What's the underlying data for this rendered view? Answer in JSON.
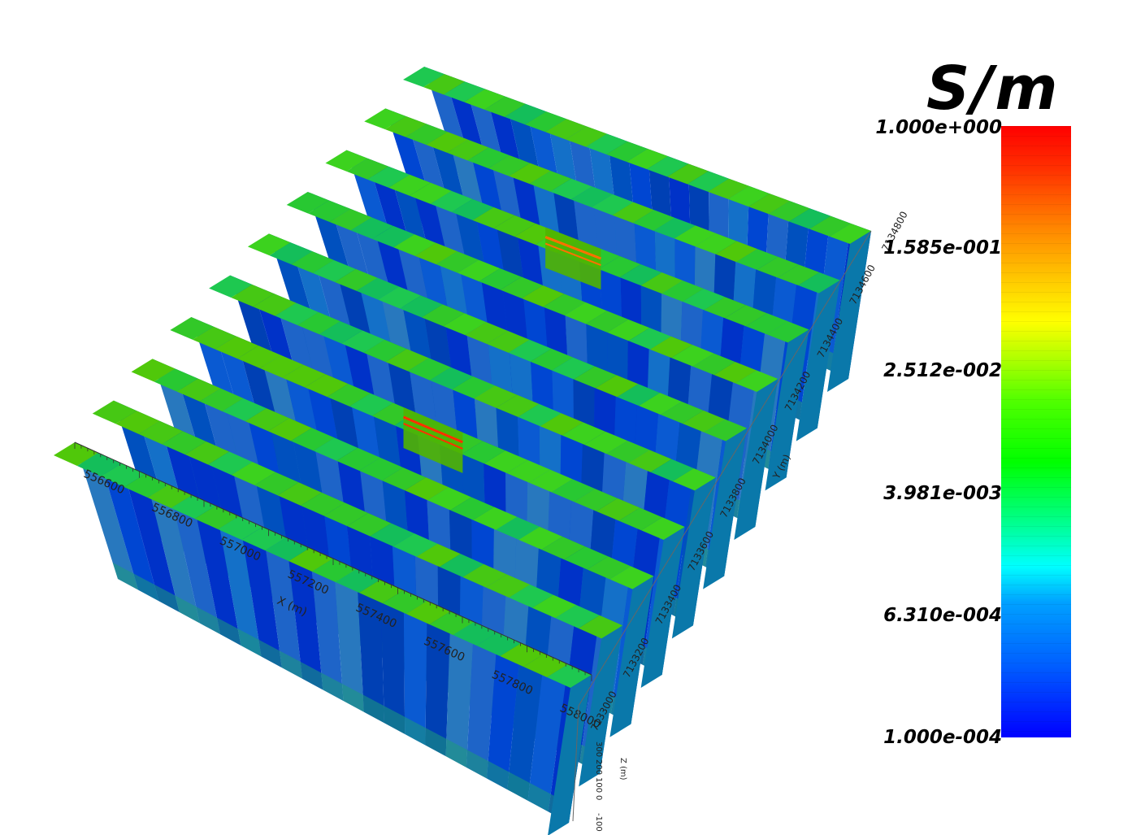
{
  "chart_data": {
    "type": "heatmap",
    "title": "",
    "colorbar": {
      "unit": "S/m",
      "scale": "log",
      "range": [
        0.0001,
        1.0
      ],
      "tick_labels": [
        "1.000e+000",
        "1.585e-001",
        "2.512e-002",
        "3.981e-003",
        "6.310e-004",
        "1.000e-004"
      ],
      "colors": [
        "#0000ff",
        "#00ffff",
        "#00ff00",
        "#ffff00",
        "#ff0000"
      ]
    },
    "axes": {
      "x": {
        "label": "X (m)",
        "ticks": [
          "556600",
          "556800",
          "557000",
          "557200",
          "557400",
          "557600",
          "557800",
          "558000"
        ]
      },
      "y": {
        "label": "Y (m)",
        "ticks": [
          "7133000",
          "7133200",
          "7133400",
          "7133600",
          "7133800",
          "7134000",
          "7134200",
          "7134400",
          "7134600",
          "7134800"
        ]
      },
      "z": {
        "label": "Z (m)",
        "ticks": [
          "300",
          "200",
          "100",
          "0",
          "-100"
        ]
      }
    },
    "sections": 10,
    "anomalies": [
      {
        "section": 7,
        "position": 0.48,
        "level": "high",
        "color": "#ff7000"
      },
      {
        "section": 3,
        "position": 0.48,
        "level": "high",
        "color": "#ff3000"
      }
    ]
  }
}
